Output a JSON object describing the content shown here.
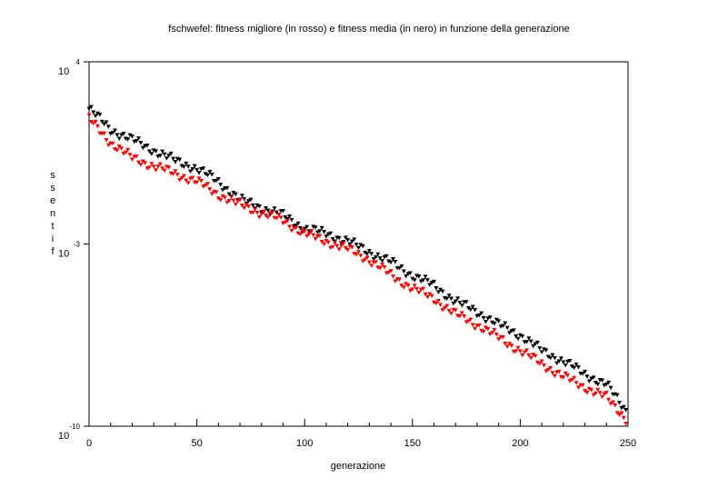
{
  "chart_data": {
    "type": "scatter",
    "title": "fschwefel: fitness migliore (in rosso) e fitness media (in nero) in funzione della generazione",
    "xlabel": "generazione",
    "ylabel": "fitness",
    "xlim": [
      0,
      250
    ],
    "ylim_log10": [
      -10,
      4
    ],
    "y_scale": "log",
    "x_ticks": [
      0,
      50,
      100,
      150,
      200,
      250
    ],
    "x_tick_labels": [
      "0",
      "50",
      "100",
      "150",
      "200",
      "250"
    ],
    "y_ticks_log10": [
      4,
      -3,
      -10
    ],
    "y_tick_labels": [
      {
        "base": "10",
        "exp": "4"
      },
      {
        "base": "10",
        "exp": "-3"
      },
      {
        "base": "10",
        "exp": "-10"
      }
    ],
    "marker": "triangle-down",
    "series": [
      {
        "color": "#000000",
        "x": [
          0,
          10,
          20,
          30,
          40,
          50,
          60,
          70,
          80,
          90,
          100,
          110,
          120,
          130,
          140,
          150,
          160,
          170,
          180,
          190,
          200,
          210,
          220,
          230,
          240,
          250
        ],
        "log10_y": [
          2.2,
          1.4,
          1.0,
          0.6,
          0.2,
          -0.1,
          -0.6,
          -1.3,
          -1.6,
          -1.9,
          -2.4,
          -2.6,
          -2.9,
          -3.3,
          -3.7,
          -4.2,
          -4.6,
          -5.2,
          -5.6,
          -6.1,
          -6.5,
          -7.1,
          -7.5,
          -8.0,
          -8.4,
          -9.5
        ]
      },
      {
        "color": "#ff0000",
        "x": [
          0,
          10,
          20,
          30,
          40,
          50,
          60,
          70,
          80,
          90,
          100,
          110,
          120,
          130,
          140,
          150,
          160,
          170,
          180,
          190,
          200,
          210,
          220,
          230,
          240,
          250
        ],
        "log10_y": [
          1.8,
          0.9,
          0.3,
          0.0,
          -0.3,
          -0.6,
          -1.1,
          -1.5,
          -1.8,
          -2.1,
          -2.6,
          -2.9,
          -3.2,
          -3.6,
          -4.2,
          -4.7,
          -5.1,
          -5.7,
          -6.1,
          -6.6,
          -7.1,
          -7.6,
          -8.1,
          -8.5,
          -8.9,
          -9.8
        ]
      }
    ]
  }
}
